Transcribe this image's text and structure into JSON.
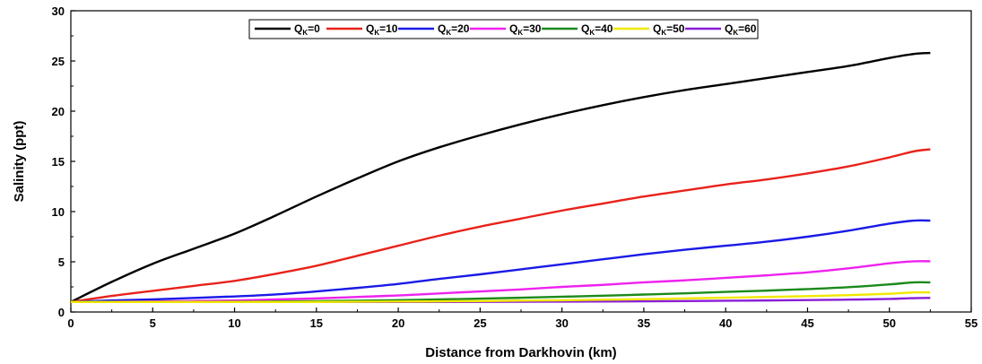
{
  "chart_data": {
    "type": "line",
    "title": "",
    "xlabel": "Distance from Darkhovin (km)",
    "ylabel": "Salinity (ppt)",
    "xlim": [
      0,
      55
    ],
    "ylim": [
      0,
      30
    ],
    "xticks": [
      0,
      5,
      10,
      15,
      20,
      25,
      30,
      35,
      40,
      45,
      50,
      55
    ],
    "yticks": [
      0,
      5,
      10,
      15,
      20,
      25,
      30
    ],
    "grid": false,
    "legend_position": "top-center",
    "x": [
      0,
      2.5,
      5,
      7.5,
      10,
      12.5,
      15,
      17.5,
      20,
      22.5,
      25,
      27.5,
      30,
      32.5,
      35,
      37.5,
      40,
      42.5,
      45,
      47.5,
      50,
      51.5,
      52.5
    ],
    "series": [
      {
        "name_main": "Q",
        "name_sub": "K",
        "name_suffix": "=0",
        "color": "#000000",
        "values": [
          1.0,
          3.0,
          4.8,
          6.3,
          7.8,
          9.6,
          11.5,
          13.3,
          15.0,
          16.4,
          17.6,
          18.7,
          19.7,
          20.6,
          21.4,
          22.1,
          22.7,
          23.3,
          23.9,
          24.5,
          25.3,
          25.7,
          25.8
        ]
      },
      {
        "name_main": "Q",
        "name_sub": "K",
        "name_suffix": "=10",
        "color": "#e8221a",
        "values": [
          1.0,
          1.6,
          2.1,
          2.6,
          3.1,
          3.8,
          4.6,
          5.6,
          6.6,
          7.6,
          8.5,
          9.3,
          10.1,
          10.8,
          11.5,
          12.1,
          12.7,
          13.2,
          13.8,
          14.5,
          15.4,
          16.0,
          16.2
        ]
      },
      {
        "name_main": "Q",
        "name_sub": "K",
        "name_suffix": "=20",
        "color": "#1a1ae6",
        "values": [
          1.0,
          1.15,
          1.25,
          1.4,
          1.55,
          1.75,
          2.05,
          2.4,
          2.8,
          3.3,
          3.75,
          4.25,
          4.75,
          5.25,
          5.75,
          6.2,
          6.6,
          7.0,
          7.5,
          8.1,
          8.8,
          9.1,
          9.1
        ]
      },
      {
        "name_main": "Q",
        "name_sub": "K",
        "name_suffix": "=30",
        "color": "#ee22ee",
        "values": [
          1.0,
          1.02,
          1.05,
          1.1,
          1.15,
          1.25,
          1.35,
          1.5,
          1.65,
          1.85,
          2.05,
          2.25,
          2.5,
          2.7,
          2.95,
          3.15,
          3.4,
          3.65,
          3.95,
          4.35,
          4.85,
          5.05,
          5.05
        ]
      },
      {
        "name_main": "Q",
        "name_sub": "K",
        "name_suffix": "=40",
        "color": "#1b8a1b",
        "values": [
          1.0,
          1.0,
          1.0,
          1.0,
          1.02,
          1.05,
          1.08,
          1.12,
          1.18,
          1.25,
          1.33,
          1.42,
          1.52,
          1.62,
          1.74,
          1.86,
          2.0,
          2.13,
          2.28,
          2.47,
          2.75,
          2.95,
          2.95
        ]
      },
      {
        "name_main": "Q",
        "name_sub": "K",
        "name_suffix": "=50",
        "color": "#f0e800",
        "values": [
          1.0,
          1.0,
          1.0,
          1.0,
          1.0,
          1.0,
          1.0,
          1.02,
          1.04,
          1.06,
          1.09,
          1.13,
          1.17,
          1.22,
          1.28,
          1.35,
          1.42,
          1.5,
          1.58,
          1.68,
          1.82,
          1.95,
          1.95
        ]
      },
      {
        "name_main": "Q",
        "name_sub": "K",
        "name_suffix": "=60",
        "color": "#8a1ed6",
        "values": [
          1.0,
          1.0,
          1.0,
          1.0,
          1.0,
          1.0,
          1.0,
          1.0,
          1.0,
          1.0,
          1.01,
          1.02,
          1.03,
          1.05,
          1.07,
          1.09,
          1.12,
          1.15,
          1.19,
          1.23,
          1.3,
          1.38,
          1.4
        ]
      }
    ]
  }
}
